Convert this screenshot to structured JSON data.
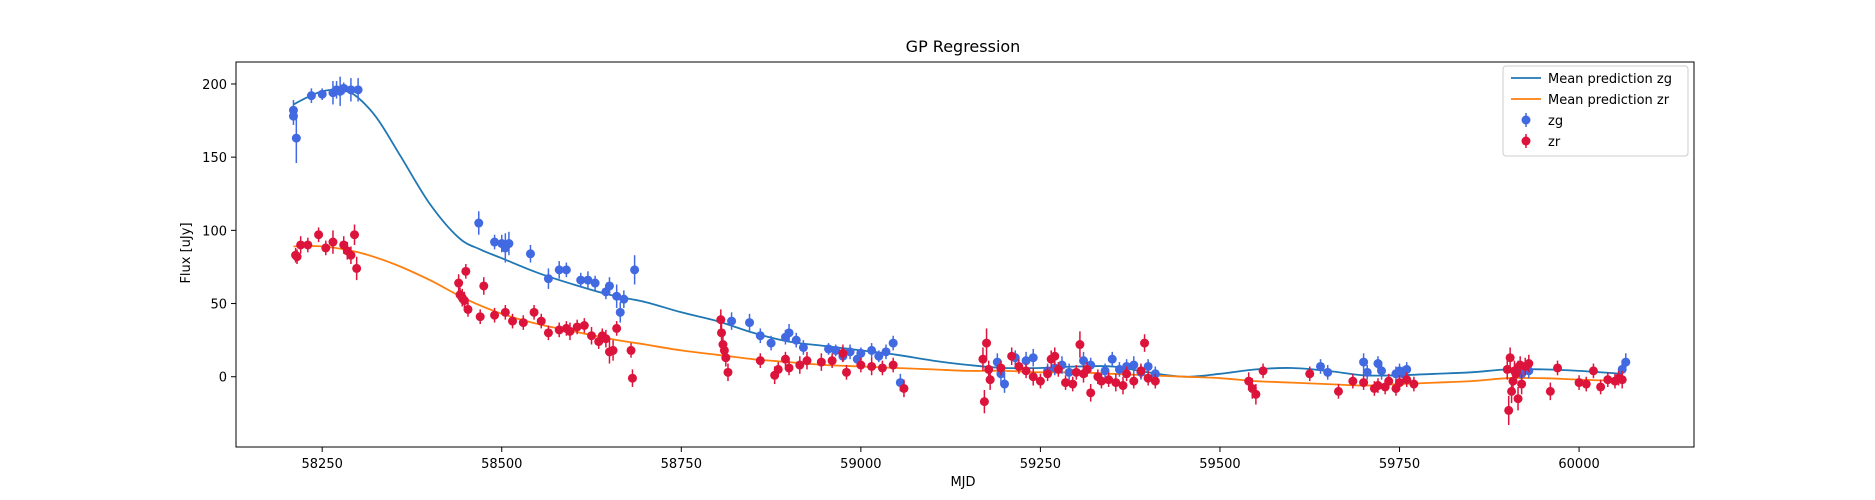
{
  "chart_data": {
    "type": "scatter",
    "title": "GP Regression",
    "xlabel": "MJD",
    "ylabel": "Flux [uJy]",
    "xlim": [
      58130,
      60160
    ],
    "ylim": [
      -48,
      215
    ],
    "x_ticks": [
      58250,
      58500,
      58750,
      59000,
      59250,
      59500,
      59750,
      60000
    ],
    "y_ticks": [
      0,
      50,
      100,
      150,
      200
    ],
    "grid": false,
    "legend_position": "top-right",
    "legend": [
      {
        "label": "Mean prediction zg",
        "kind": "line",
        "color": "#1f77b4"
      },
      {
        "label": "Mean prediction zr",
        "kind": "line",
        "color": "#ff7f0e"
      },
      {
        "label": "zg",
        "kind": "errorbar",
        "color": "#4169e1"
      },
      {
        "label": "zr",
        "kind": "errorbar",
        "color": "#dc143c"
      }
    ],
    "lines": [
      {
        "name": "Mean prediction zg",
        "color": "#1f77b4",
        "x": [
          58210,
          58230,
          58250,
          58270,
          58290,
          58310,
          58330,
          58360,
          58400,
          58440,
          58470,
          58500,
          58550,
          58600,
          58650,
          58700,
          58750,
          58800,
          58850,
          58900,
          58950,
          59000,
          59050,
          59100,
          59150,
          59200,
          59250,
          59300,
          59350,
          59400,
          59450,
          59500,
          59550,
          59600,
          59650,
          59700,
          59750,
          59800,
          59850,
          59900,
          59950,
          60000,
          60060
        ],
        "y": [
          186,
          191,
          195,
          196,
          194,
          186,
          174,
          150,
          118,
          95,
          87,
          81,
          71,
          63,
          56,
          51,
          44,
          38,
          30,
          24,
          21,
          18,
          15,
          11,
          8,
          6,
          6,
          7,
          7,
          3,
          0,
          2,
          5,
          6,
          4,
          1,
          1,
          2,
          3,
          5,
          5,
          4,
          2
        ]
      },
      {
        "name": "Mean prediction zr",
        "color": "#ff7f0e",
        "x": [
          58210,
          58250,
          58300,
          58350,
          58400,
          58450,
          58500,
          58550,
          58600,
          58650,
          58700,
          58750,
          58800,
          58850,
          58900,
          58950,
          59000,
          59050,
          59100,
          59150,
          59200,
          59250,
          59300,
          59350,
          59400,
          59450,
          59500,
          59550,
          59600,
          59650,
          59700,
          59750,
          59800,
          59850,
          59900,
          59950,
          60000,
          60060
        ],
        "y": [
          89,
          89,
          85,
          77,
          66,
          53,
          43,
          36,
          31,
          26,
          22,
          18,
          15,
          12,
          10,
          8,
          7,
          6,
          5,
          4,
          4,
          3,
          3,
          2,
          1,
          0,
          -1,
          -3,
          -4,
          -5,
          -6,
          -5,
          -4,
          -3,
          -1,
          -1,
          -2,
          -3
        ]
      }
    ],
    "series": [
      {
        "name": "zg",
        "color": "#4169e1",
        "points": [
          [
            58210,
            182,
            7
          ],
          [
            58210,
            178,
            6
          ],
          [
            58214,
            163,
            17
          ],
          [
            58235,
            192,
            5
          ],
          [
            58250,
            193,
            4
          ],
          [
            58265,
            194,
            8
          ],
          [
            58270,
            196,
            6
          ],
          [
            58275,
            195,
            10
          ],
          [
            58280,
            197,
            4
          ],
          [
            58290,
            196,
            8
          ],
          [
            58300,
            196,
            8
          ],
          [
            58468,
            105,
            8
          ],
          [
            58490,
            92,
            5
          ],
          [
            58500,
            91,
            6
          ],
          [
            58505,
            88,
            10
          ],
          [
            58510,
            91,
            8
          ],
          [
            58540,
            84,
            6
          ],
          [
            58565,
            67,
            7
          ],
          [
            58580,
            73,
            6
          ],
          [
            58590,
            73,
            5
          ],
          [
            58610,
            66,
            5
          ],
          [
            58620,
            66,
            6
          ],
          [
            58630,
            64,
            5
          ],
          [
            58645,
            58,
            5
          ],
          [
            58650,
            62,
            6
          ],
          [
            58660,
            55,
            8
          ],
          [
            58665,
            44,
            7
          ],
          [
            58670,
            53,
            6
          ],
          [
            58685,
            73,
            10
          ],
          [
            58820,
            38,
            6
          ],
          [
            58845,
            37,
            6
          ],
          [
            58860,
            28,
            5
          ],
          [
            58875,
            23,
            5
          ],
          [
            58895,
            27,
            5
          ],
          [
            58900,
            30,
            6
          ],
          [
            58910,
            25,
            5
          ],
          [
            58920,
            20,
            5
          ],
          [
            58955,
            19,
            4
          ],
          [
            58965,
            18,
            4
          ],
          [
            58975,
            14,
            4
          ],
          [
            58985,
            17,
            5
          ],
          [
            58995,
            12,
            5
          ],
          [
            59000,
            16,
            4
          ],
          [
            59015,
            18,
            5
          ],
          [
            59025,
            14,
            4
          ],
          [
            59035,
            17,
            5
          ],
          [
            59045,
            23,
            5
          ],
          [
            59055,
            -4,
            6
          ],
          [
            59190,
            10,
            6
          ],
          [
            59195,
            2,
            6
          ],
          [
            59200,
            -5,
            6
          ],
          [
            59215,
            13,
            5
          ],
          [
            59230,
            11,
            6
          ],
          [
            59240,
            13,
            6
          ],
          [
            59260,
            4,
            5
          ],
          [
            59270,
            6,
            5
          ],
          [
            59280,
            8,
            6
          ],
          [
            59290,
            3,
            6
          ],
          [
            59310,
            11,
            6
          ],
          [
            59320,
            8,
            5
          ],
          [
            59340,
            4,
            5
          ],
          [
            59350,
            12,
            5
          ],
          [
            59360,
            5,
            5
          ],
          [
            59370,
            7,
            5
          ],
          [
            59380,
            8,
            6
          ],
          [
            59390,
            3,
            5
          ],
          [
            59400,
            7,
            5
          ],
          [
            59410,
            2,
            5
          ],
          [
            59640,
            7,
            5
          ],
          [
            59650,
            3,
            5
          ],
          [
            59700,
            10,
            6
          ],
          [
            59705,
            3,
            5
          ],
          [
            59720,
            9,
            5
          ],
          [
            59725,
            4,
            6
          ],
          [
            59745,
            2,
            5
          ],
          [
            59750,
            4,
            5
          ],
          [
            59755,
            2,
            5
          ],
          [
            59760,
            5,
            5
          ],
          [
            59915,
            6,
            5
          ],
          [
            59920,
            2,
            5
          ],
          [
            59930,
            4,
            5
          ],
          [
            60060,
            5,
            5
          ],
          [
            60065,
            10,
            6
          ]
        ]
      },
      {
        "name": "zr",
        "color": "#dc143c",
        "points": [
          [
            58213,
            83,
            5
          ],
          [
            58215,
            82,
            5
          ],
          [
            58220,
            90,
            6
          ],
          [
            58230,
            90,
            5
          ],
          [
            58245,
            97,
            5
          ],
          [
            58255,
            88,
            5
          ],
          [
            58265,
            92,
            8
          ],
          [
            58280,
            90,
            6
          ],
          [
            58285,
            86,
            6
          ],
          [
            58290,
            83,
            6
          ],
          [
            58295,
            97,
            7
          ],
          [
            58298,
            74,
            8
          ],
          [
            58440,
            64,
            6
          ],
          [
            58442,
            56,
            5
          ],
          [
            58445,
            54,
            6
          ],
          [
            58448,
            52,
            6
          ],
          [
            58450,
            72,
            5
          ],
          [
            58453,
            46,
            5
          ],
          [
            58470,
            41,
            5
          ],
          [
            58475,
            62,
            6
          ],
          [
            58490,
            42,
            5
          ],
          [
            58505,
            44,
            5
          ],
          [
            58515,
            38,
            5
          ],
          [
            58530,
            37,
            5
          ],
          [
            58545,
            44,
            5
          ],
          [
            58555,
            38,
            5
          ],
          [
            58565,
            30,
            5
          ],
          [
            58580,
            32,
            5
          ],
          [
            58590,
            33,
            5
          ],
          [
            58595,
            31,
            6
          ],
          [
            58605,
            34,
            5
          ],
          [
            58615,
            35,
            5
          ],
          [
            58625,
            28,
            6
          ],
          [
            58635,
            24,
            5
          ],
          [
            58640,
            28,
            5
          ],
          [
            58645,
            26,
            6
          ],
          [
            58650,
            17,
            8
          ],
          [
            58655,
            18,
            7
          ],
          [
            58660,
            33,
            5
          ],
          [
            58680,
            18,
            5
          ],
          [
            58682,
            -1,
            6
          ],
          [
            58805,
            39,
            7
          ],
          [
            58806,
            30,
            6
          ],
          [
            58808,
            22,
            7
          ],
          [
            58810,
            18,
            6
          ],
          [
            58812,
            13,
            6
          ],
          [
            58815,
            3,
            6
          ],
          [
            58860,
            11,
            5
          ],
          [
            58880,
            1,
            6
          ],
          [
            58885,
            5,
            5
          ],
          [
            58895,
            12,
            5
          ],
          [
            58900,
            6,
            5
          ],
          [
            58915,
            8,
            6
          ],
          [
            58925,
            11,
            6
          ],
          [
            58945,
            10,
            6
          ],
          [
            58960,
            11,
            5
          ],
          [
            58975,
            16,
            6
          ],
          [
            58980,
            3,
            5
          ],
          [
            59000,
            8,
            5
          ],
          [
            59015,
            7,
            6
          ],
          [
            59030,
            6,
            5
          ],
          [
            59045,
            8,
            5
          ],
          [
            59060,
            -8,
            6
          ],
          [
            59170,
            12,
            8
          ],
          [
            59172,
            -17,
            8
          ],
          [
            59175,
            23,
            10
          ],
          [
            59178,
            5,
            6
          ],
          [
            59180,
            -2,
            7
          ],
          [
            59195,
            6,
            5
          ],
          [
            59210,
            14,
            6
          ],
          [
            59220,
            7,
            5
          ],
          [
            59230,
            4,
            5
          ],
          [
            59240,
            0,
            6
          ],
          [
            59250,
            -3,
            5
          ],
          [
            59260,
            2,
            5
          ],
          [
            59265,
            12,
            6
          ],
          [
            59270,
            14,
            6
          ],
          [
            59275,
            5,
            5
          ],
          [
            59285,
            -4,
            5
          ],
          [
            59295,
            -5,
            5
          ],
          [
            59300,
            3,
            5
          ],
          [
            59305,
            22,
            9
          ],
          [
            59310,
            2,
            6
          ],
          [
            59315,
            5,
            5
          ],
          [
            59320,
            -11,
            6
          ],
          [
            59330,
            0,
            5
          ],
          [
            59335,
            -3,
            5
          ],
          [
            59345,
            -2,
            5
          ],
          [
            59355,
            -4,
            6
          ],
          [
            59365,
            -6,
            6
          ],
          [
            59370,
            2,
            5
          ],
          [
            59380,
            -3,
            5
          ],
          [
            59390,
            4,
            5
          ],
          [
            59395,
            23,
            6
          ],
          [
            59400,
            -1,
            5
          ],
          [
            59410,
            -3,
            5
          ],
          [
            59540,
            -3,
            6
          ],
          [
            59545,
            -8,
            7
          ],
          [
            59550,
            -12,
            7
          ],
          [
            59560,
            4,
            5
          ],
          [
            59625,
            2,
            5
          ],
          [
            59665,
            -10,
            5
          ],
          [
            59685,
            -3,
            5
          ],
          [
            59700,
            -4,
            5
          ],
          [
            59715,
            -8,
            5
          ],
          [
            59720,
            -6,
            5
          ],
          [
            59730,
            -7,
            5
          ],
          [
            59735,
            -3,
            5
          ],
          [
            59745,
            -8,
            5
          ],
          [
            59750,
            -4,
            5
          ],
          [
            59760,
            -2,
            5
          ],
          [
            59770,
            -5,
            5
          ],
          [
            59900,
            5,
            7
          ],
          [
            59902,
            -23,
            10
          ],
          [
            59904,
            13,
            7
          ],
          [
            59906,
            -10,
            8
          ],
          [
            59908,
            -3,
            7
          ],
          [
            59910,
            4,
            7
          ],
          [
            59912,
            2,
            7
          ],
          [
            59915,
            -15,
            8
          ],
          [
            59918,
            8,
            6
          ],
          [
            59920,
            -5,
            7
          ],
          [
            59925,
            7,
            6
          ],
          [
            59930,
            9,
            6
          ],
          [
            59960,
            -10,
            6
          ],
          [
            59970,
            6,
            5
          ],
          [
            60000,
            -4,
            5
          ],
          [
            60010,
            -5,
            5
          ],
          [
            60020,
            4,
            5
          ],
          [
            60030,
            -7,
            5
          ],
          [
            60040,
            -2,
            5
          ],
          [
            60050,
            -3,
            5
          ],
          [
            60055,
            -1,
            5
          ],
          [
            60060,
            -2,
            6
          ]
        ]
      }
    ]
  }
}
